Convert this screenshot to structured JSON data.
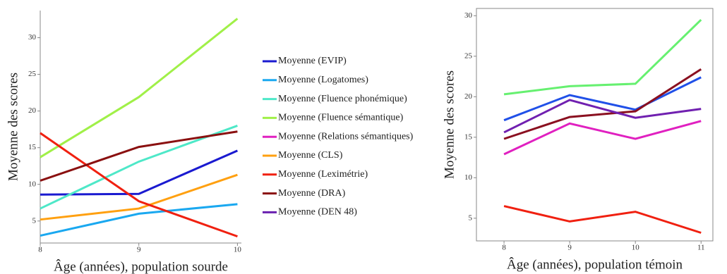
{
  "chart_data": [
    {
      "type": "line",
      "x_label": "Âge (années), population sourde",
      "y_label": "Moyenne des scores",
      "x": [
        8,
        9,
        10
      ],
      "xlim": [
        8,
        10.04
      ],
      "ylim": [
        2.0,
        33.7
      ],
      "xticks": [
        8,
        9,
        10
      ],
      "yticks": [
        5,
        10,
        15,
        20,
        25,
        30
      ],
      "series": [
        {
          "name": "Moyenne (EVIP)",
          "color": "#1a1ad0",
          "values": [
            8.6,
            8.7,
            14.6
          ]
        },
        {
          "name": "Moyenne (Logatomes)",
          "color": "#1aa8f0",
          "values": [
            3.0,
            6.0,
            7.3
          ]
        },
        {
          "name": "Moyenne (Fluence phonémique)",
          "color": "#4ee8c8",
          "values": [
            6.7,
            13.1,
            18.0
          ]
        },
        {
          "name": "Moyenne (Fluence sémantique)",
          "color": "#a0f048",
          "values": [
            13.7,
            21.9,
            32.6
          ]
        },
        {
          "name": "Moyenne (Relations sémantiques)",
          "color": "#e020c0",
          "values": [
            null,
            null,
            null
          ]
        },
        {
          "name": "Moyenne (CLS)",
          "color": "#ffa010",
          "values": [
            5.2,
            6.7,
            11.3
          ]
        },
        {
          "name": "Moyenne (Leximétrie)",
          "color": "#f02010",
          "values": [
            17.0,
            7.7,
            2.9
          ]
        },
        {
          "name": "Moyenne (DRA)",
          "color": "#8a1010",
          "values": [
            10.5,
            15.1,
            17.2
          ]
        },
        {
          "name": "Moyenne (DEN 48)",
          "color": "#6a20b0",
          "values": [
            null,
            null,
            null
          ]
        }
      ]
    },
    {
      "type": "line",
      "x_label": "Âge (années), population témoin",
      "y_label": "Moyenne des scores",
      "x": [
        8,
        9,
        10,
        11
      ],
      "xlim": [
        7.58,
        11.18
      ],
      "ylim": [
        2.2,
        30.9
      ],
      "xticks": [
        8,
        9,
        10,
        11
      ],
      "yticks": [
        5,
        10,
        15,
        20,
        25,
        30
      ],
      "series": [
        {
          "color": "#2050e8",
          "values": [
            17.1,
            20.2,
            18.4,
            22.4
          ]
        },
        {
          "color": "#66f070",
          "values": [
            20.3,
            21.3,
            21.6,
            29.5
          ]
        },
        {
          "color": "#8a1020",
          "values": [
            14.8,
            17.5,
            18.2,
            23.4
          ]
        },
        {
          "color": "#7020b0",
          "values": [
            15.6,
            19.6,
            17.4,
            18.5
          ]
        },
        {
          "color": "#e020c0",
          "values": [
            12.9,
            16.7,
            14.8,
            17.0
          ]
        },
        {
          "color": "#f02010",
          "values": [
            6.5,
            4.6,
            5.8,
            3.2
          ]
        }
      ]
    }
  ]
}
